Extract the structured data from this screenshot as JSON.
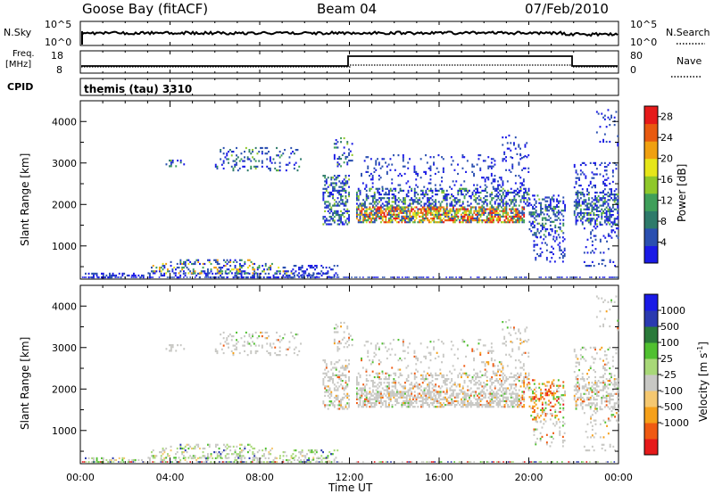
{
  "header": {
    "station": "Goose Bay (fitACF)",
    "beam": "Beam 04",
    "date": "07/Feb/2010"
  },
  "noise_panel": {
    "left_label": "N.Sky",
    "right_label": "N.Search",
    "left_ticks": [
      "10^5",
      "10^0"
    ],
    "right_ticks": [
      "10^5",
      "10^0"
    ]
  },
  "freq_panel": {
    "left_label_1": "Freq.",
    "left_label_2": "[MHz]",
    "right_label": "Nave",
    "left_ticks": [
      "18",
      "8"
    ],
    "right_ticks": [
      "80",
      "0"
    ]
  },
  "cpid_panel": {
    "label": "CPID",
    "value": "themis (tau) 3310"
  },
  "colors": {
    "power_scale": [
      "#1a1ae6",
      "#2a4fb0",
      "#2e7a6a",
      "#3f9f5a",
      "#8fc82a",
      "#e6e619",
      "#f0a010",
      "#e85a10",
      "#e61a1a"
    ],
    "velocity_scale": [
      "#e61a1a",
      "#ef5a12",
      "#f5a01a",
      "#f5c870",
      "#c8c8c4",
      "#a8d878",
      "#50c030",
      "#2a7a3a",
      "#2a3ab0",
      "#1a1ae6"
    ]
  },
  "chart_data": [
    {
      "type": "line",
      "title": "N.Sky",
      "x": [
        "00:00",
        "04:00",
        "08:00",
        "12:00",
        "16:00",
        "20:00",
        "00:00"
      ],
      "series": [
        {
          "name": "N.Sky",
          "values": [
            2.6,
            2.7,
            2.6,
            2.5,
            2.5,
            2.6,
            2.4
          ]
        },
        {
          "name": "N.Search",
          "values": [
            2.5,
            2.5,
            2.5,
            2.5,
            2.5,
            2.5,
            2.5
          ]
        }
      ]
    },
    {
      "type": "line",
      "title": "Freq.",
      "x": [
        "00:00",
        "12:00",
        "12:00",
        "21:45",
        "21:45",
        "00:00"
      ],
      "series": [
        {
          "name": "Freq.",
          "values": [
            10,
            10,
            15.6,
            15.6,
            10,
            10
          ]
        },
        {
          "name": "Nave",
          "values": [
            8,
            8,
            28,
            28,
            8,
            8
          ]
        }
      ]
    },
    {
      "type": "heatmap",
      "xlabel": "Time UT",
      "ylabel": "Slant Range [km]",
      "ylim": [
        200,
        4500
      ],
      "xlim": [
        "00:00",
        "00:00"
      ],
      "x_ticks": [
        "00:00",
        "04:00",
        "08:00",
        "12:00",
        "16:00",
        "20:00",
        "00:00"
      ],
      "y_ticks": [
        1000,
        2000,
        3000,
        4000
      ],
      "colorbar": {
        "label": "Power [dB]",
        "ticks": [
          4,
          8,
          12,
          16,
          20,
          24,
          28
        ],
        "range": [
          0,
          30
        ]
      }
    },
    {
      "type": "heatmap",
      "xlabel": "Time UT",
      "ylabel": "Slant Range [km]",
      "ylim": [
        200,
        4500
      ],
      "x_ticks": [
        "00:00",
        "04:00",
        "08:00",
        "12:00",
        "16:00",
        "20:00",
        "00:00"
      ],
      "y_ticks": [
        1000,
        2000,
        3000,
        4000
      ],
      "colorbar": {
        "label": "Velocity [m s^-1]",
        "ticks": [
          1000,
          500,
          100,
          25,
          -25,
          -100,
          -500,
          -1000
        ]
      }
    }
  ],
  "xaxis": {
    "label": "Time UT"
  },
  "power_panel": {
    "cb_label": "Power [dB]"
  },
  "velocity_panel": {
    "cb_label_main": "Velocity [m s",
    "cb_label_sup": "-1",
    "cb_label_end": "]"
  }
}
